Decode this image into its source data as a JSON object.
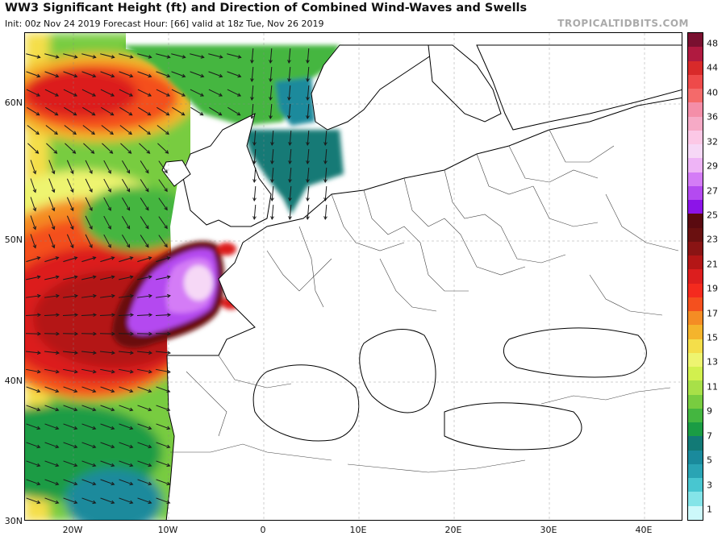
{
  "header": {
    "title": "WW3 Significant Height (ft) and Direction of Combined Wind-Waves and Swells",
    "subtitle": "Init: 00z Nov 24 2019   Forecast Hour: [66]   valid at 18z Tue, Nov 26 2019",
    "credit": "TROPICALTIDBITS.COM"
  },
  "map": {
    "lat_labels": [
      "60N",
      "50N",
      "40N",
      "30N"
    ],
    "lon_labels": [
      "20W",
      "10W",
      "0",
      "10E",
      "20E",
      "30E",
      "40E"
    ]
  },
  "colorbar": {
    "unit": "ft",
    "tick_labels": [
      "48",
      "44",
      "40",
      "36",
      "32",
      "29",
      "27",
      "25",
      "23",
      "21",
      "19",
      "17",
      "15",
      "13",
      "11",
      "9",
      "7",
      "5",
      "3",
      "1"
    ],
    "colors": [
      "#7a1030",
      "#b01a40",
      "#d82a2a",
      "#ee4a4a",
      "#f46a6a",
      "#f48ea8",
      "#f6aac6",
      "#fcc8e6",
      "#f6d8f6",
      "#eeb4f6",
      "#d47cf6",
      "#b44af0",
      "#8c14e8",
      "#5a0a10",
      "#6a1010",
      "#8a1414",
      "#b41616",
      "#dc1e1e",
      "#f42a1e",
      "#f4501e",
      "#f48c24",
      "#f4b42c",
      "#f4de4a",
      "#eef470",
      "#d2f04e",
      "#a8e048",
      "#78cc40",
      "#44b640",
      "#1a9c44",
      "#127a76",
      "#1a8a9c",
      "#2aa4b4",
      "#48c6d0",
      "#84e4e8",
      "#ccf8fa"
    ],
    "accent_colors": {
      "peak": "#a64cf0",
      "land_outline": "#000000",
      "arrow": "#1a1a1a"
    }
  }
}
